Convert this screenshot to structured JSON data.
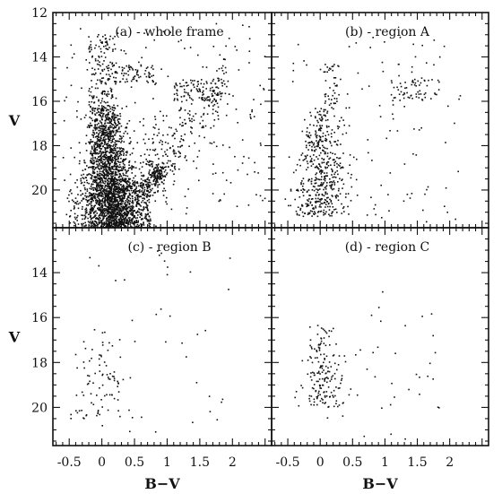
{
  "chart_data": {
    "type": "scatter",
    "layout": "2x2 panels, shared axes",
    "xlabel": "B−V",
    "ylabel": "V",
    "xlim": [
      -0.75,
      2.6
    ],
    "ylim": [
      21.7,
      12
    ],
    "y_inverted": true,
    "x_ticks": [
      "-0.5",
      "0",
      "0.5",
      "1",
      "1.5",
      "2"
    ],
    "x_tick_values": [
      -0.5,
      0,
      0.5,
      1,
      1.5,
      2
    ],
    "y_ticks": [
      "12",
      "14",
      "16",
      "18",
      "20"
    ],
    "y_tick_values": [
      12,
      14,
      16,
      18,
      20
    ],
    "grid": false,
    "panels": [
      {
        "label": "(a) - whole frame",
        "features": {
          "main_sequence": {
            "x_center": 0.05,
            "x_sd": 0.12,
            "v_range": [
              16.2,
              21.7
            ],
            "count": 1900
          },
          "lower_spread": {
            "x_range": [
              0.1,
              0.75
            ],
            "v_range": [
              19.5,
              21.7
            ],
            "count": 550
          },
          "red_clump": {
            "x_center": 0.85,
            "v_center": 19.3,
            "count": 120
          },
          "red_giant_branch": {
            "x_range": [
              0.3,
              1.9
            ],
            "v_range": [
              15.0,
              21.0
            ],
            "count": 320
          },
          "upper_giant_tail": {
            "x_range": [
              1.1,
              1.85
            ],
            "v_range": [
              15.0,
              16.0
            ],
            "count": 80
          },
          "bright_blue_stars": {
            "x_range": [
              -0.2,
              0.5
            ],
            "v_range": [
              13.0,
              16.5
            ],
            "count": 160
          },
          "clump_v15": {
            "x_range": [
              0.2,
              0.8
            ],
            "v_range": [
              14.4,
              15.2
            ],
            "count": 70
          },
          "field_scatter": {
            "x_range": [
              -0.6,
              2.5
            ],
            "v_range": [
              12.5,
              21.7
            ],
            "count": 250
          }
        }
      },
      {
        "label": "(b) - region A",
        "features": {
          "main_sequence": {
            "x_center": 0.0,
            "x_sd": 0.12,
            "v_range": [
              16.3,
              21.2
            ],
            "count": 480
          },
          "upper_giant_tail": {
            "x_range": [
              1.1,
              1.85
            ],
            "v_range": [
              15.0,
              16.0
            ],
            "count": 60
          },
          "bright_blue_stars": {
            "x_range": [
              0.05,
              0.45
            ],
            "v_range": [
              14.3,
              16.3
            ],
            "count": 40
          },
          "field_scatter": {
            "x_range": [
              -0.5,
              2.2
            ],
            "v_range": [
              13.0,
              21.5
            ],
            "count": 110
          }
        }
      },
      {
        "label": "(c) - region B",
        "features": {
          "main_sequence": {
            "x_center": 0.0,
            "x_sd": 0.13,
            "v_range": [
              16.5,
              20.5
            ],
            "count": 85
          },
          "field_scatter": {
            "x_range": [
              -0.2,
              2.0
            ],
            "v_range": [
              13.0,
              21.2
            ],
            "count": 40
          }
        }
      },
      {
        "label": "(d) - region C",
        "features": {
          "main_sequence": {
            "x_center": 0.0,
            "x_sd": 0.1,
            "v_range": [
              16.3,
              20.0
            ],
            "count": 170
          },
          "field_scatter": {
            "x_range": [
              0.1,
              1.9
            ],
            "v_range": [
              14.5,
              21.5
            ],
            "count": 40
          }
        }
      }
    ]
  }
}
